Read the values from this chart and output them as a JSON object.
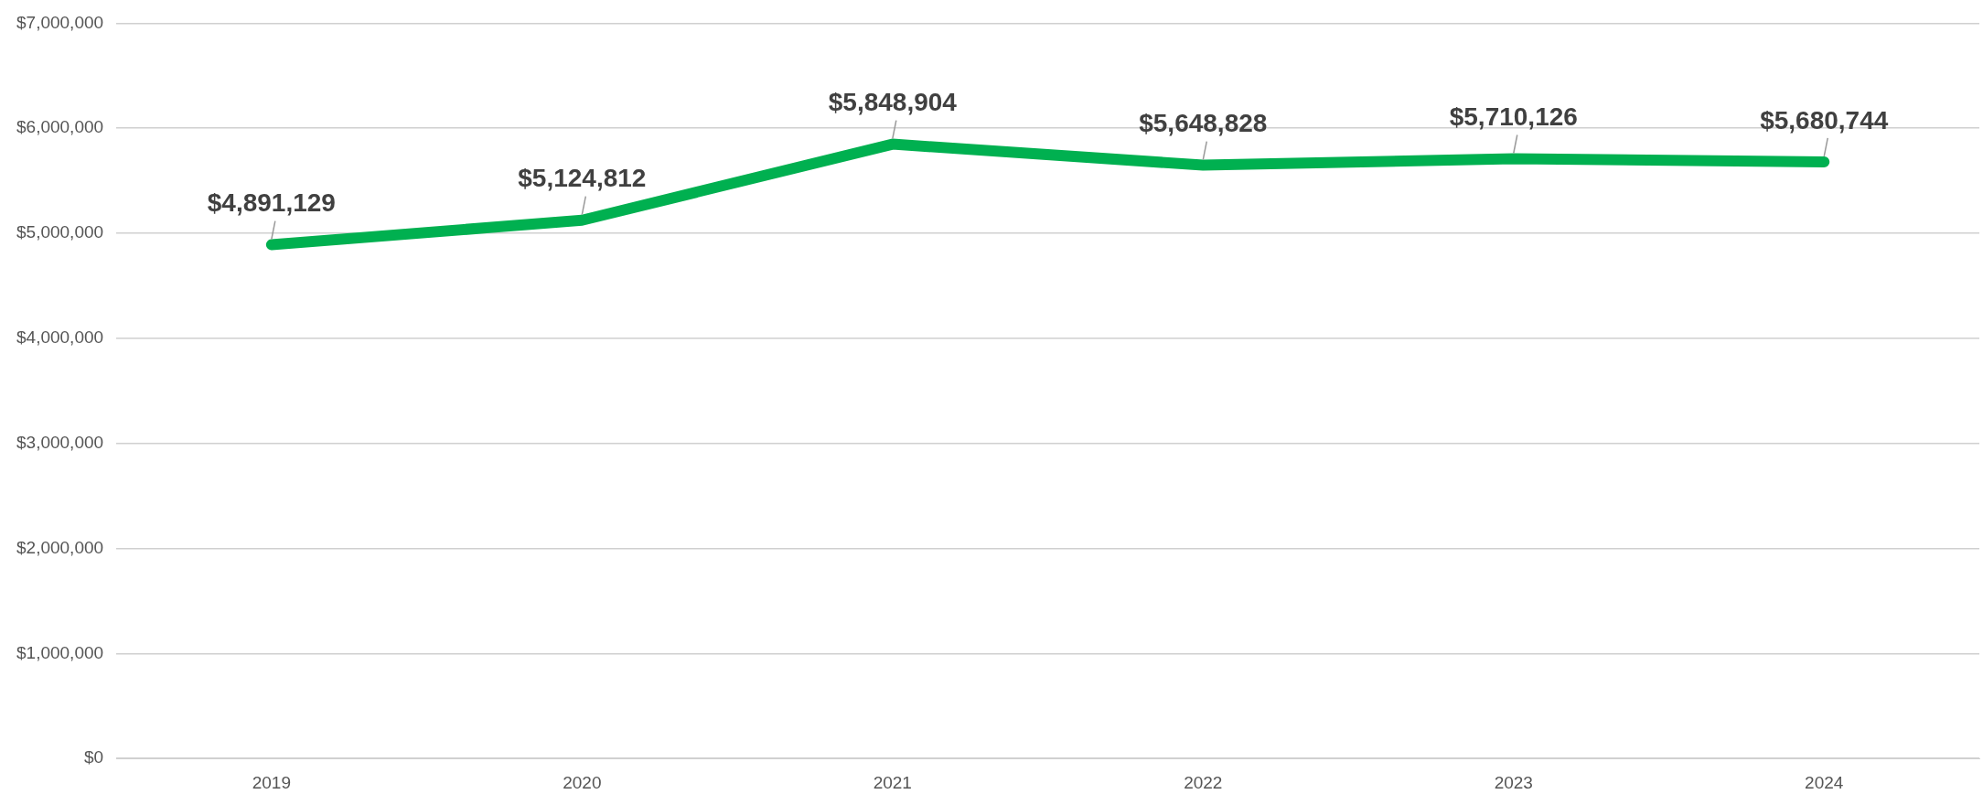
{
  "chart_data": {
    "type": "line",
    "categories": [
      "2019",
      "2020",
      "2021",
      "2022",
      "2023",
      "2024"
    ],
    "series": [
      {
        "color": "#00b050",
        "values": [
          4891129,
          5124812,
          5848904,
          5648828,
          5710126,
          5680744
        ],
        "value_labels": [
          "$4,891,129",
          "$5,124,812",
          "$5,848,904",
          "$5,648,828",
          "$5,710,126",
          "$5,680,744"
        ]
      }
    ],
    "ylim": [
      0,
      7000000
    ],
    "yticks": [
      {
        "value": 0,
        "label": "$0"
      },
      {
        "value": 1000000,
        "label": "$1,000,000"
      },
      {
        "value": 2000000,
        "label": "$2,000,000"
      },
      {
        "value": 3000000,
        "label": "$3,000,000"
      },
      {
        "value": 4000000,
        "label": "$4,000,000"
      },
      {
        "value": 5000000,
        "label": "$5,000,000"
      },
      {
        "value": 6000000,
        "label": "$6,000,000"
      },
      {
        "value": 7000000,
        "label": "$7,000,000"
      }
    ],
    "grid": "y",
    "legend": false,
    "marker": "none",
    "line_style": "solid"
  }
}
